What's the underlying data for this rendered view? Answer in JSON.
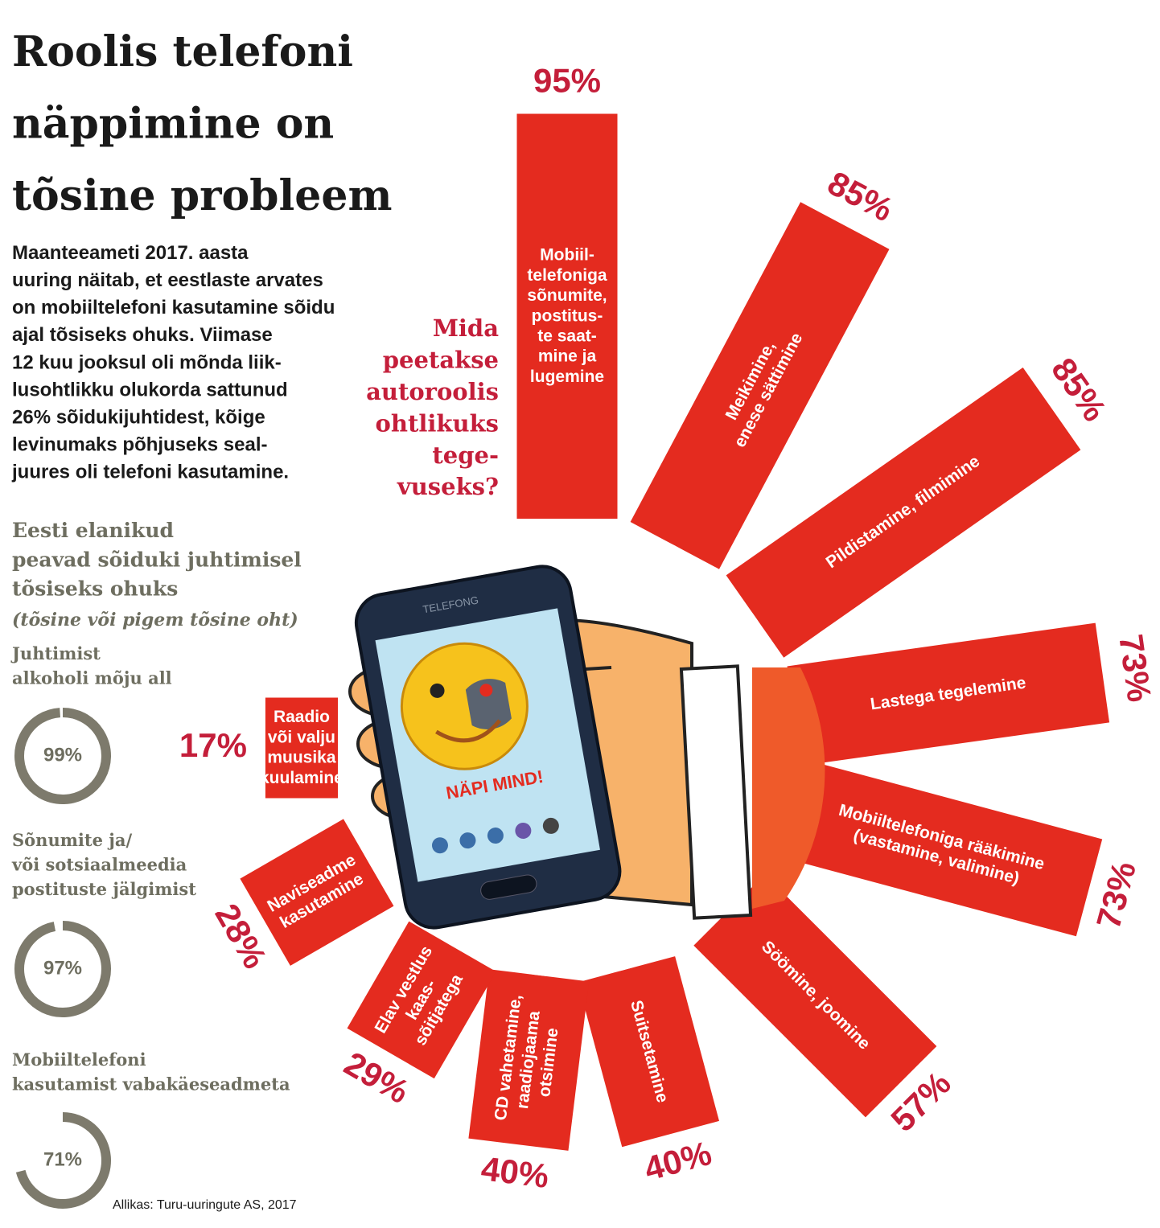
{
  "header": {
    "title": "Roolis telefoni\nnäppimine on\ntõsine probleem",
    "intro": "Maanteeameti 2017. aasta\nuuring näitab, et eestlaste arvates\non mobiiltelefoni kasutamine sõidu\najal tõsiseks ohuks. Viimase\n12 kuu jooksul oli mõnda liik-\nlusohtlikku olukorda sattunud\n26% sõidukijuhtidest, kõige\nlevinumaks põhjuseks seal-\njuures oli telefoni kasutamine."
  },
  "illustration": {
    "phone_brand": "TELEFONG",
    "screen_text": "NÄPI MIND!"
  },
  "source": "Allikas: Turu-uuringute AS, 2017",
  "chart_data": [
    {
      "type": "radial_bar",
      "title": "Mida\npeetakse\nautoroolis\nohtlikuks\ntege-\nvuseks?",
      "color": "#e42b1f",
      "categories": [
        "Mobiil-\ntelefoniga\nsõnumite,\npostitus-\nte saat-\nmine ja\nlugemine",
        "Meikimine,\nenese sättimine",
        "Pildistamine, filmimine",
        "Lastega tegelemine",
        "Mobiiltelefoniga rääkimine\n(vastamine, valimine)",
        "Söömine, joomine",
        "Suitsetamine",
        "CD vahetamine,\nraadiojaama\notsimine",
        "Elav vestlus\nkaas-\nsõitjatega",
        "Naviseadme\nkasutamine",
        "Raadio\nvõi valju\nmuusika\nkuulamine"
      ],
      "values": [
        95,
        85,
        85,
        73,
        73,
        57,
        40,
        40,
        29,
        28,
        17
      ],
      "value_labels": [
        "95%",
        "85%",
        "85%",
        "73%",
        "73%",
        "57%",
        "40%",
        "40%",
        "29%",
        "28%",
        "17%"
      ]
    },
    {
      "type": "donut",
      "title": "Eesti elanikud\npeavad sõiduki juhtimisel\ntõsiseks ohuks",
      "subtitle": "(tõsine või pigem tõsine oht)",
      "color": "#7d7a6c",
      "categories": [
        "Juhtimist\nalkoholi mõju all",
        "Sõnumite ja/\nvõi sotsiaalmeedia\npostituste jälgimist",
        "Mobiiltelefoni\nkasutamist vabakäeseadmeta"
      ],
      "values": [
        99,
        97,
        71
      ],
      "value_labels": [
        "99%",
        "97%",
        "71%"
      ]
    }
  ]
}
